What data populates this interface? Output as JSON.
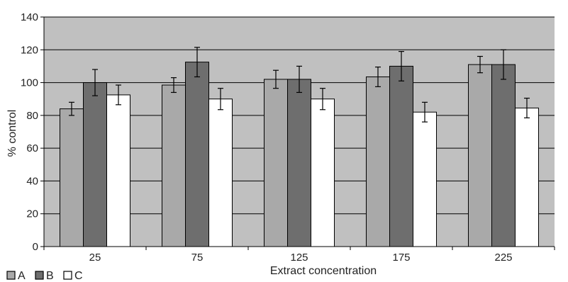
{
  "chart_data": {
    "type": "bar",
    "title": "",
    "xlabel": "Extract concentration",
    "ylabel": "% control",
    "categories": [
      "25",
      "75",
      "125",
      "175",
      "225"
    ],
    "ylim": [
      0,
      140
    ],
    "yticks": [
      0,
      20,
      40,
      60,
      80,
      100,
      120,
      140
    ],
    "grid": true,
    "legend_position": "bottom-left",
    "series": [
      {
        "name": "A",
        "color": "#a9a9a9",
        "values": [
          84,
          98.5,
          102,
          103.5,
          111
        ],
        "errors": [
          4,
          4.5,
          5.5,
          6,
          5
        ]
      },
      {
        "name": "B",
        "color": "#6e6e6e",
        "values": [
          100,
          112.5,
          102,
          110,
          111
        ],
        "errors": [
          8,
          9,
          8,
          9,
          9
        ]
      },
      {
        "name": "C",
        "color": "#ffffff",
        "values": [
          92.5,
          90,
          90,
          82,
          84.5
        ],
        "errors": [
          6,
          6.5,
          6.5,
          6,
          6
        ]
      }
    ],
    "plot_background": "#c0c0c0"
  }
}
